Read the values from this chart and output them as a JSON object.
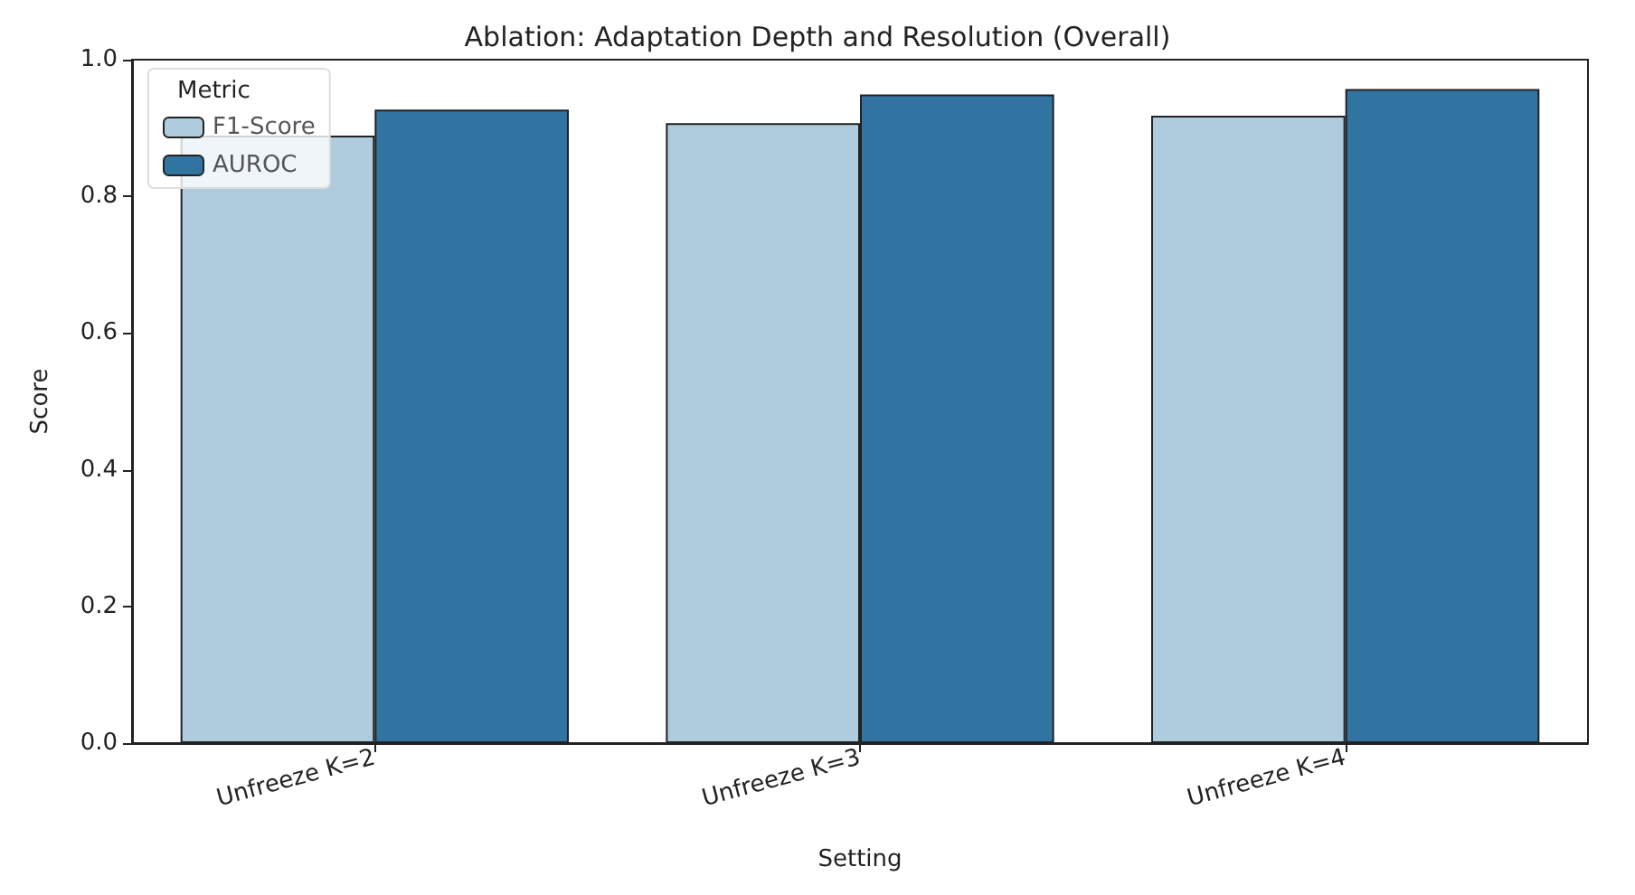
{
  "chart_data": {
    "type": "bar",
    "title": "Ablation: Adaptation Depth and Resolution (Overall)",
    "xlabel": "Setting",
    "ylabel": "Score",
    "legend_title": "Metric",
    "legend": "top left",
    "grid": false,
    "categories": [
      "Unfreeze K=2",
      "Unfreeze K=3",
      "Unfreeze K=4"
    ],
    "series": [
      {
        "name": "F1-Score",
        "color": "#afcbde",
        "values": [
          0.889,
          0.907,
          0.918
        ]
      },
      {
        "name": "AUROC",
        "color": "#3274a1",
        "values": [
          0.927,
          0.949,
          0.957
        ]
      }
    ],
    "ylim": [
      0,
      1
    ],
    "yticks": [
      {
        "value": 0,
        "label": "0.0"
      },
      {
        "value": 0.2,
        "label": "0.2"
      },
      {
        "value": 0.4,
        "label": "0.4"
      },
      {
        "value": 0.6,
        "label": "0.6"
      },
      {
        "value": 0.8,
        "label": "0.8"
      },
      {
        "value": 1,
        "label": "1.0"
      }
    ]
  }
}
